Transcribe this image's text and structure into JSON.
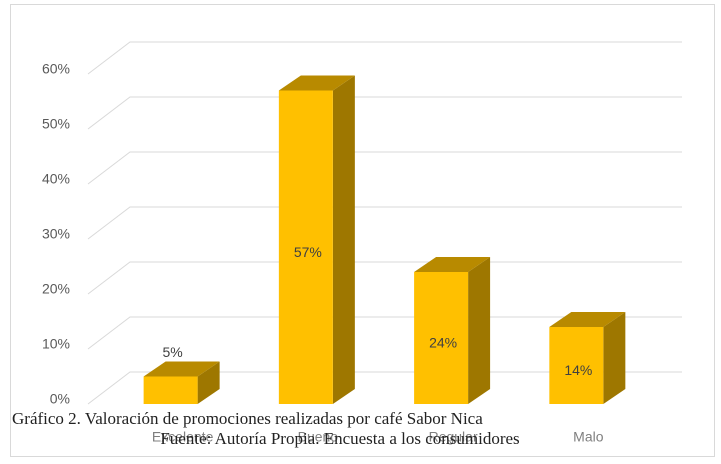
{
  "chart_data": {
    "type": "bar",
    "categories": [
      "Excelente",
      "Bueno",
      "Regular",
      "Malo"
    ],
    "values": [
      5,
      57,
      24,
      14
    ],
    "value_labels": [
      "5%",
      "57%",
      "24%",
      "14%"
    ],
    "color": "#ffc000",
    "ylim": [
      0,
      60
    ],
    "yticks": [
      {
        "value": 0,
        "label": "0%"
      },
      {
        "value": 10,
        "label": "10%"
      },
      {
        "value": 20,
        "label": "20%"
      },
      {
        "value": 30,
        "label": "30%"
      },
      {
        "value": 40,
        "label": "40%"
      },
      {
        "value": 50,
        "label": "50%"
      },
      {
        "value": 60,
        "label": "60%"
      }
    ],
    "grid": true
  },
  "caption": "Gráfico 2. Valoración de promociones realizadas por café Sabor Nica",
  "source": "Fuente: Autoría Propia. Encuesta a los consumidores"
}
